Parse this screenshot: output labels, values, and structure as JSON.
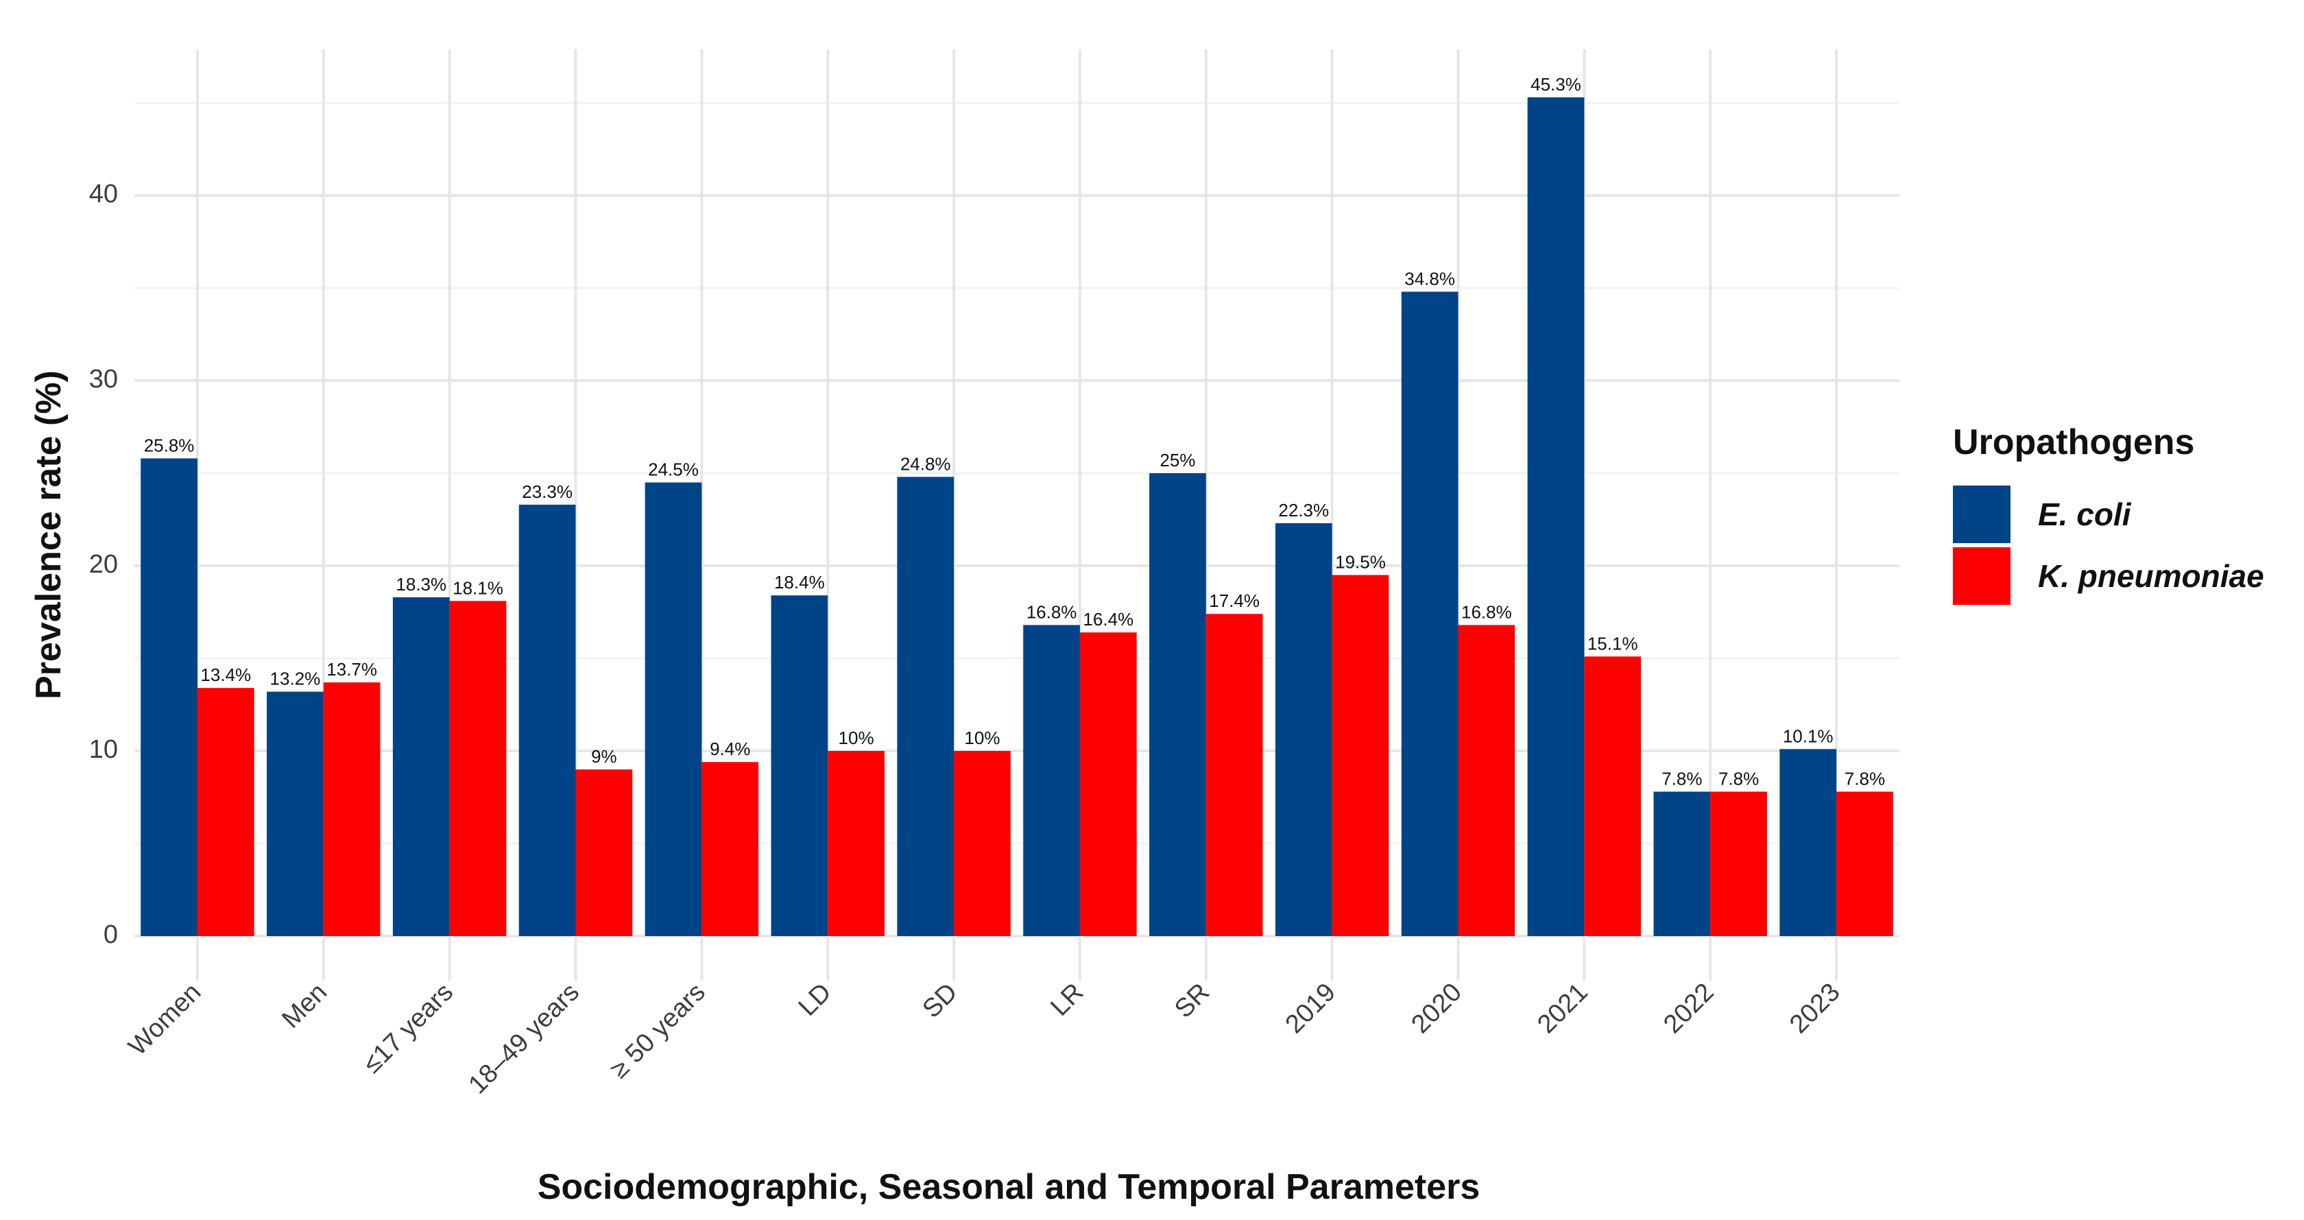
{
  "chart_data": {
    "type": "bar",
    "title": "",
    "xlabel": "Sociodemographic, Seasonal and Temporal Parameters",
    "ylabel": "Prevalence rate (%)",
    "ylim": [
      0,
      48
    ],
    "yticks": [
      0,
      10,
      20,
      30,
      40
    ],
    "grid": true,
    "legend_position": "right",
    "categories": [
      "Women",
      "Men",
      "≤17 years",
      "18–49 years",
      "≥ 50 years",
      "LD",
      "SD",
      "LR",
      "SR",
      "2019",
      "2020",
      "2021",
      "2022",
      "2023"
    ],
    "series": [
      {
        "name": "E. coli",
        "color": "#004488",
        "values": [
          25.8,
          13.2,
          18.3,
          23.3,
          24.5,
          18.4,
          24.8,
          16.8,
          25,
          22.3,
          34.8,
          45.3,
          7.8,
          10.1
        ],
        "labels": [
          "25.8%",
          "13.2%",
          "18.3%",
          "23.3%",
          "24.5%",
          "18.4%",
          "24.8%",
          "16.8%",
          "25%",
          "22.3%",
          "34.8%",
          "45.3%",
          "7.8%",
          "10.1%"
        ]
      },
      {
        "name": "K. pneumoniae",
        "color": "#ff0000",
        "values": [
          13.4,
          13.7,
          18.1,
          9,
          9.4,
          10,
          10,
          16.4,
          17.4,
          19.5,
          16.8,
          15.1,
          7.8,
          7.8
        ],
        "labels": [
          "13.4%",
          "13.7%",
          "18.1%",
          "9%",
          "9.4%",
          "10%",
          "10%",
          "16.4%",
          "17.4%",
          "19.5%",
          "16.8%",
          "15.1%",
          "7.8%",
          "7.8%"
        ]
      }
    ],
    "legend": {
      "title": "Uropathogens"
    }
  }
}
